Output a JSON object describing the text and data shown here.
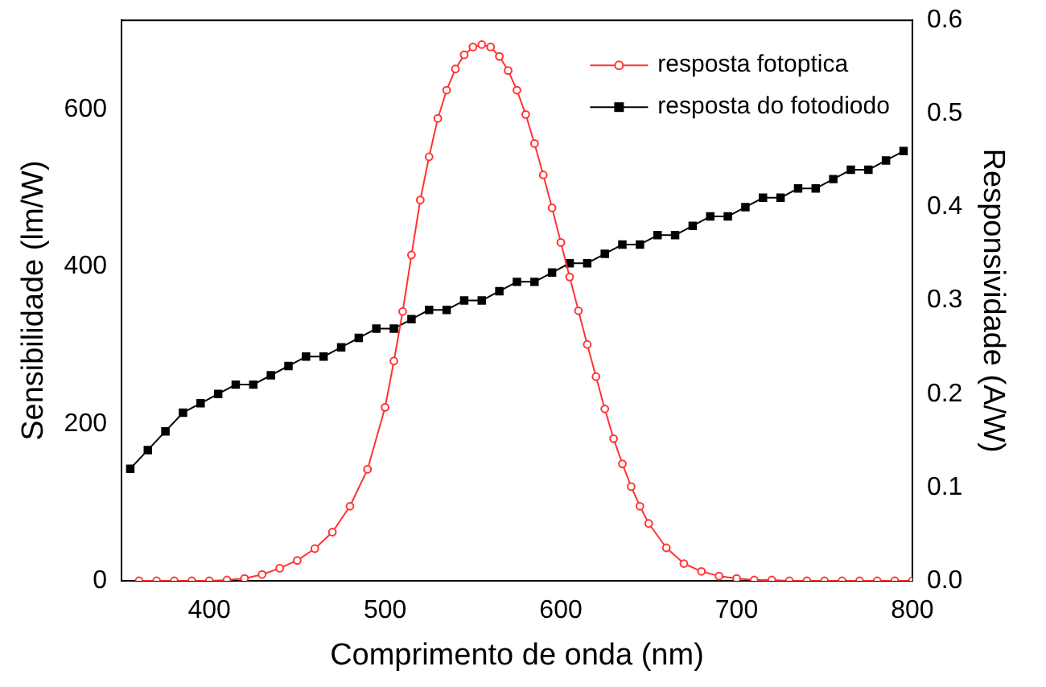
{
  "chart_data": {
    "type": "line",
    "xlabel": "Comprimento de onda (nm)",
    "ylabel": "Sensibilidade (lm/W)",
    "y2label": "Responsividade (A/W)",
    "xlim": [
      350,
      800
    ],
    "xticks": [
      400,
      500,
      600,
      700,
      800
    ],
    "ylim": [
      0,
      714
    ],
    "yticks": [
      0,
      200,
      400,
      600
    ],
    "y2lim": [
      0,
      0.6
    ],
    "y2ticks": [
      {
        "value": 0,
        "label": "0.0"
      },
      {
        "value": 0.1,
        "label": "0.1"
      },
      {
        "value": 0.2,
        "label": "0.2"
      },
      {
        "value": 0.3,
        "label": "0.3"
      },
      {
        "value": 0.4,
        "label": "0.4"
      },
      {
        "value": 0.5,
        "label": "0.5"
      },
      {
        "value": 0.6,
        "label": "0.6"
      }
    ],
    "grid": false,
    "legend": "top right",
    "line_style": "solid",
    "series": [
      {
        "name": "resposta fotoptica",
        "color": "#ff3333",
        "marker": "circle",
        "x": [
          360,
          370,
          380,
          390,
          400,
          410,
          420,
          430,
          440,
          450,
          460,
          470,
          480,
          490,
          500,
          505,
          510,
          515,
          520,
          525,
          530,
          535,
          540,
          545,
          550,
          555,
          560,
          565,
          570,
          575,
          580,
          585,
          590,
          595,
          600,
          605,
          610,
          615,
          620,
          625,
          630,
          635,
          640,
          645,
          650,
          660,
          670,
          680,
          690,
          700,
          710,
          720,
          730,
          740,
          750,
          760,
          770,
          780,
          790,
          800
        ],
        "values": [
          0,
          0,
          0,
          0,
          0,
          1,
          3,
          8,
          16,
          26,
          41,
          62,
          95,
          142,
          221,
          280,
          343,
          415,
          485,
          540,
          589,
          625,
          652,
          670,
          680,
          683,
          680,
          668,
          650,
          625,
          594,
          557,
          517,
          475,
          431,
          387,
          344,
          301,
          260,
          219,
          181,
          149,
          120,
          95,
          73,
          42,
          22,
          12,
          6,
          3,
          1,
          1,
          0,
          0,
          0,
          0,
          0,
          0,
          0,
          0
        ]
      },
      {
        "name": "resposta do fotodiodo",
        "color": "#000000",
        "marker": "square",
        "axis": "y2",
        "x": [
          355,
          365,
          375,
          385,
          395,
          405,
          415,
          425,
          435,
          445,
          455,
          465,
          475,
          485,
          495,
          505,
          515,
          525,
          535,
          545,
          555,
          565,
          575,
          585,
          595,
          605,
          615,
          625,
          635,
          645,
          655,
          665,
          675,
          685,
          695,
          705,
          715,
          725,
          735,
          745,
          755,
          765,
          775,
          785,
          795
        ],
        "values": [
          0.12,
          0.14,
          0.16,
          0.18,
          0.19,
          0.2,
          0.21,
          0.21,
          0.22,
          0.23,
          0.24,
          0.24,
          0.25,
          0.26,
          0.27,
          0.27,
          0.28,
          0.29,
          0.29,
          0.3,
          0.3,
          0.31,
          0.32,
          0.32,
          0.33,
          0.34,
          0.34,
          0.35,
          0.36,
          0.36,
          0.37,
          0.37,
          0.38,
          0.39,
          0.39,
          0.4,
          0.41,
          0.41,
          0.42,
          0.42,
          0.43,
          0.44,
          0.44,
          0.45,
          0.46
        ]
      }
    ]
  }
}
